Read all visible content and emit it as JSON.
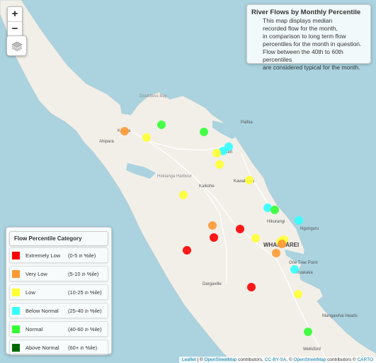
{
  "controls": {
    "zoom_in": "+",
    "zoom_out": "−",
    "layers_icon": "layers-icon"
  },
  "info_box": {
    "title": "River Flows by Monthly Percentile",
    "lines": [
      "This map displays median",
      "recorded flow for the month,",
      "in comparison to long term flow",
      "percentiles for the month in question.",
      "Flow between the 40th to 60th percentiles",
      "are considered typical for the month."
    ]
  },
  "legend": {
    "title": "Flow Percentile Category",
    "th": "th",
    "ile": "%ile)",
    "items": [
      {
        "label": "Extremely Low",
        "range": "(0-5",
        "color": "#ff0000"
      },
      {
        "label": "Very Low",
        "range": "(5-10",
        "color": "#ff9933"
      },
      {
        "label": "Low",
        "range": "(10-25",
        "color": "#ffff33"
      },
      {
        "label": "Below Normal",
        "range": "(25-40",
        "color": "#33ffff"
      },
      {
        "label": "Normal",
        "range": "(40-60",
        "color": "#33ff33"
      },
      {
        "label": "Above Normal",
        "range": "(60+",
        "color": "#006600"
      }
    ]
  },
  "place_labels": [
    "Doubtless Bay",
    "Kaitaia",
    "Ahipara",
    "Paihia",
    "Kerikeri",
    "Hokianga Harbour",
    "Kaikohe",
    "Kawakawa",
    "Hikurangi",
    "Ngunguru",
    "WHANGĀREI",
    "One Tree Point",
    "Ruakaka",
    "Dargaville",
    "Mangawhai Heads",
    "Wellsford"
  ],
  "attribution": {
    "leaflet": "Leaflet",
    "sep1": " | © ",
    "osm1": "OpenStreetMap",
    "mid1": " contributors, ",
    "ccbysa": "CC-BY-SA",
    "mid2": ", © ",
    "osm2": "OpenStreetMap",
    "mid3": " contributors © ",
    "carto": "CARTO"
  },
  "markers": [
    {
      "category": "Very Low",
      "color": "#ff9933"
    },
    {
      "category": "Low",
      "color": "#ffff33"
    },
    {
      "category": "Normal",
      "color": "#33ff33"
    },
    {
      "category": "Normal",
      "color": "#33ff33"
    },
    {
      "category": "Below Normal",
      "color": "#33ffff"
    },
    {
      "category": "Below Normal",
      "color": "#33ffff"
    },
    {
      "category": "Low",
      "color": "#ffff33"
    },
    {
      "category": "Low",
      "color": "#ffff33"
    },
    {
      "category": "Low",
      "color": "#ffff33"
    },
    {
      "category": "Low",
      "color": "#ffff33"
    },
    {
      "category": "Low",
      "color": "#ffff33"
    },
    {
      "category": "Below Normal",
      "color": "#33ffff"
    },
    {
      "category": "Normal",
      "color": "#33ff33"
    },
    {
      "category": "Below Normal",
      "color": "#33ffff"
    },
    {
      "category": "Very Low",
      "color": "#ff9933"
    },
    {
      "category": "Extremely Low",
      "color": "#ff0000"
    },
    {
      "category": "Extremely Low",
      "color": "#ff0000"
    },
    {
      "category": "Extremely Low",
      "color": "#ff0000"
    },
    {
      "category": "Low",
      "color": "#ffff33"
    },
    {
      "category": "Low",
      "color": "#ffff33"
    },
    {
      "category": "Very Low",
      "color": "#ff9933"
    },
    {
      "category": "Very Low",
      "color": "#ff9933"
    },
    {
      "category": "Below Normal",
      "color": "#33ffff"
    },
    {
      "category": "Extremely Low",
      "color": "#ff0000"
    },
    {
      "category": "Low",
      "color": "#ffff33"
    },
    {
      "category": "Normal",
      "color": "#33ff33"
    }
  ]
}
